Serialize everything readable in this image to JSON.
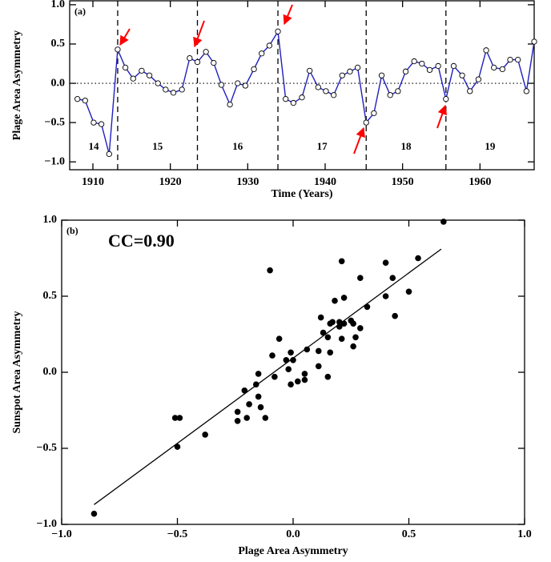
{
  "chart_data": [
    {
      "type": "line",
      "panel_label": "(a)",
      "xlabel": "Time (Years)",
      "ylabel": "Plage Area Asymmetry",
      "x": [
        1908.0,
        1909.0,
        1910.1,
        1911.1,
        1912.1,
        1913.2,
        1914.2,
        1915.2,
        1916.3,
        1917.3,
        1918.4,
        1919.4,
        1920.4,
        1921.5,
        1922.5,
        1923.5,
        1924.6,
        1925.6,
        1926.6,
        1927.7,
        1928.7,
        1929.7,
        1930.8,
        1931.8,
        1932.8,
        1933.9,
        1934.9,
        1935.9,
        1937.0,
        1938.0,
        1939.1,
        1940.1,
        1941.1,
        1942.2,
        1943.2,
        1944.2,
        1945.3,
        1946.3,
        1947.3,
        1948.4,
        1949.4,
        1950.4,
        1951.5,
        1952.5,
        1953.5,
        1954.6,
        1955.6,
        1956.6,
        1957.7,
        1958.7,
        1959.8,
        1960.8,
        1961.8,
        1962.9,
        1963.9,
        1964.9,
        1966.0,
        1967.0
      ],
      "values": [
        -0.2,
        -0.22,
        -0.5,
        -0.52,
        -0.9,
        0.43,
        0.2,
        0.06,
        0.16,
        0.1,
        0,
        -0.08,
        -0.12,
        -0.08,
        0.32,
        0.27,
        0.4,
        0.26,
        -0.02,
        -0.27,
        0,
        -0.03,
        0.18,
        0.38,
        0.48,
        0.66,
        -0.2,
        -0.25,
        -0.18,
        0.16,
        -0.05,
        -0.1,
        -0.15,
        0.1,
        0.15,
        0.2,
        -0.5,
        -0.38,
        0.1,
        -0.15,
        -0.1,
        0.15,
        0.28,
        0.25,
        0.17,
        0.22,
        -0.2,
        0.22,
        0.1,
        -0.1,
        0.05,
        0.42,
        0.2,
        0.18,
        0.3,
        0.3,
        -0.1,
        0.53
      ],
      "color": "#1f1fbf",
      "xlim": [
        1907,
        1967
      ],
      "ylim": [
        -1.1,
        1.05
      ],
      "xticks": [
        1910,
        1920,
        1930,
        1940,
        1950,
        1960
      ],
      "yticks": [
        {
          "value": -1,
          "label": "−1.0"
        },
        {
          "value": -0.5,
          "label": "−0.5"
        },
        {
          "value": 0,
          "label": "0.0"
        },
        0.5,
        {
          "value": 1,
          "label": "1.0"
        }
      ],
      "cycle_minima": [
        1913.2,
        1923.5,
        1933.9,
        1945.3,
        1955.6
      ],
      "cycle_labels": [
        "14",
        "15",
        "16",
        "17",
        "18",
        "19"
      ]
    },
    {
      "type": "scatter",
      "panel_label": "(b)",
      "annotation": "CC=0.90",
      "xlabel": "Plage Area Asymmetry",
      "ylabel": "Sunspot Area Asymmetry",
      "x": [
        0.65,
        0.54,
        0.4,
        0.21,
        -0.1,
        0.43,
        0.29,
        0.44,
        0.5,
        0.4,
        0.32,
        0.18,
        0.22,
        0.2,
        0.25,
        0.29,
        0.26,
        0.22,
        0.2,
        0.12,
        0.13,
        0.16,
        0.17,
        0.15,
        0.21,
        0.27,
        0.26,
        0.11,
        0.06,
        -0.06,
        -0.01,
        0.16,
        0.15,
        0.11,
        0.05,
        0.0,
        -0.03,
        -0.02,
        -0.08,
        0.02,
        -0.01,
        0.05,
        -0.15,
        -0.09,
        -0.21,
        -0.16,
        -0.15,
        -0.19,
        -0.14,
        -0.2,
        -0.12,
        -0.24,
        -0.24,
        -0.51,
        -0.49,
        -0.5,
        -0.38,
        -0.86
      ],
      "y": [
        0.99,
        0.75,
        0.72,
        0.73,
        0.67,
        0.62,
        0.62,
        0.37,
        0.53,
        0.5,
        0.43,
        0.47,
        0.49,
        0.33,
        0.34,
        0.29,
        0.32,
        0.32,
        0.3,
        0.36,
        0.26,
        0.32,
        0.33,
        0.23,
        0.22,
        0.23,
        0.17,
        0.14,
        0.15,
        0.22,
        0.13,
        0.13,
        -0.03,
        0.04,
        -0.01,
        0.08,
        0.08,
        0.02,
        -0.03,
        -0.06,
        -0.08,
        -0.05,
        -0.01,
        0.11,
        -0.12,
        -0.08,
        -0.16,
        -0.21,
        -0.23,
        -0.3,
        -0.3,
        -0.26,
        -0.32,
        -0.3,
        -0.3,
        -0.49,
        -0.41,
        -0.93
      ],
      "color": "#000000",
      "fit_line": {
        "x": [
          -0.86,
          0.64
        ],
        "y": [
          -0.87,
          0.81
        ]
      },
      "xlim": [
        -1,
        1
      ],
      "ylim": [
        -1,
        1
      ],
      "xticks": [
        {
          "value": -1,
          "label": "−1.0"
        },
        {
          "value": -0.5,
          "label": "−0.5"
        },
        {
          "value": 0,
          "label": "0.0"
        },
        0.5,
        {
          "value": 1,
          "label": "1.0"
        }
      ],
      "yticks": [
        {
          "value": -1,
          "label": "−1.0"
        },
        {
          "value": -0.5,
          "label": "−0.5"
        },
        {
          "value": 0,
          "label": "0.0"
        },
        0.5,
        {
          "value": 1,
          "label": "1.0"
        }
      ]
    }
  ]
}
